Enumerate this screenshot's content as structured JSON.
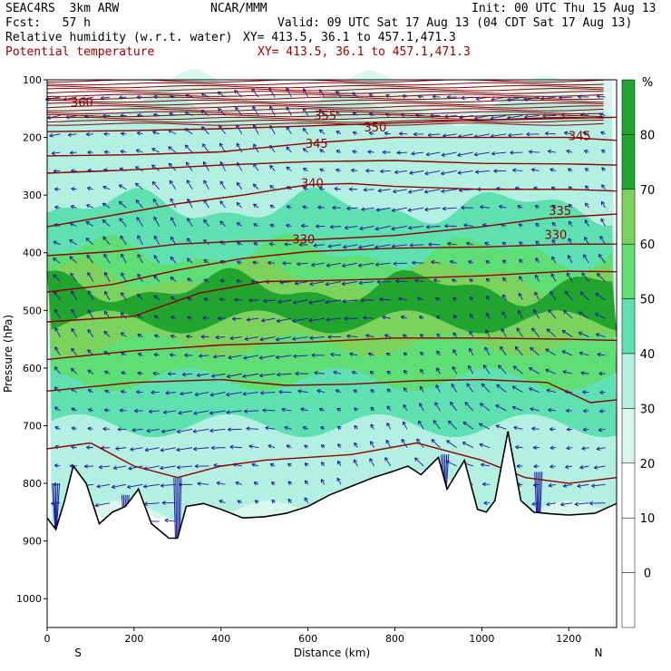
{
  "header": {
    "model_line": "SEAC4RS  3km ARW",
    "center": "NCAR/MMM",
    "init": "Init: 00 UTC Thu 15 Aug 13",
    "fcst": "Fcst:   57 h",
    "valid": "Valid: 09 UTC Sat 17 Aug 13 (04 CDT Sat 17 Aug 13)",
    "field1": "Relative humidity (w.r.t. water)",
    "xy1": "XY= 413.5, 36.1 to 457.1,471.3",
    "field2": "Potential temperature",
    "xy2": "XY= 413.5, 36.1 to 457.1,471.3"
  },
  "colors": {
    "theta_contour": "#8b0000",
    "wind_vector": "#1a1a9c",
    "terrain": "#000000",
    "rh_30": "#d9f7ee",
    "rh_40": "#b4f0e1",
    "rh_50": "#5fe0b1",
    "rh_60": "#5ede74",
    "rh_70": "#7bd35e",
    "rh_80": "#22a52e"
  },
  "chart_data": {
    "type": "heatmap",
    "xlabel": "Distance (km)",
    "ylabel": "Pressure (hPa)",
    "x_range": [
      0,
      1310
    ],
    "y_range": [
      1050,
      100
    ],
    "x_ticks": [
      0,
      200,
      400,
      600,
      800,
      1000,
      1200
    ],
    "y_ticks": [
      100,
      200,
      300,
      400,
      500,
      600,
      700,
      800,
      900,
      1000
    ],
    "x_end_labels": {
      "left": "S",
      "right": "N"
    },
    "colorbar": {
      "unit": "%",
      "ticks": [
        0,
        10,
        20,
        30,
        40,
        50,
        60,
        70,
        80
      ],
      "levels": [
        30,
        40,
        50,
        60,
        70,
        80
      ]
    },
    "theta_contour_labels": [
      {
        "value": "360",
        "x": 80,
        "p": 140
      },
      {
        "value": "355",
        "x": 640,
        "p": 163
      },
      {
        "value": "350",
        "x": 755,
        "p": 183
      },
      {
        "value": "345",
        "x": 620,
        "p": 212
      },
      {
        "value": "345",
        "x": 1225,
        "p": 198
      },
      {
        "value": "340",
        "x": 610,
        "p": 280
      },
      {
        "value": "335",
        "x": 1180,
        "p": 328
      },
      {
        "value": "330",
        "x": 590,
        "p": 378
      },
      {
        "value": "330",
        "x": 1170,
        "p": 370
      }
    ],
    "theta_contours": [
      {
        "points": [
          [
            0,
            190
          ],
          [
            200,
            188
          ],
          [
            400,
            185
          ],
          [
            600,
            180
          ],
          [
            800,
            175
          ],
          [
            1000,
            170
          ],
          [
            1310,
            165
          ]
        ]
      },
      {
        "points": [
          [
            0,
            232
          ],
          [
            200,
            230
          ],
          [
            400,
            225
          ],
          [
            600,
            210
          ],
          [
            800,
            200
          ],
          [
            1000,
            200
          ],
          [
            1200,
            200
          ],
          [
            1310,
            205
          ]
        ]
      },
      {
        "points": [
          [
            0,
            262
          ],
          [
            200,
            256
          ],
          [
            400,
            248
          ],
          [
            600,
            242
          ],
          [
            800,
            240
          ],
          [
            1000,
            245
          ],
          [
            1200,
            246
          ],
          [
            1310,
            248
          ]
        ]
      },
      {
        "points": [
          [
            0,
            355
          ],
          [
            150,
            335
          ],
          [
            300,
            315
          ],
          [
            450,
            300
          ],
          [
            600,
            282
          ],
          [
            700,
            280
          ],
          [
            800,
            285
          ],
          [
            1000,
            290
          ],
          [
            1200,
            290
          ],
          [
            1310,
            293
          ]
        ]
      },
      {
        "points": [
          [
            0,
            405
          ],
          [
            150,
            398
          ],
          [
            300,
            385
          ],
          [
            450,
            380
          ],
          [
            600,
            378
          ],
          [
            800,
            370
          ],
          [
            1000,
            355
          ],
          [
            1150,
            340
          ],
          [
            1310,
            333
          ]
        ]
      },
      {
        "points": [
          [
            0,
            468
          ],
          [
            150,
            455
          ],
          [
            300,
            430
          ],
          [
            450,
            410
          ],
          [
            600,
            398
          ],
          [
            800,
            392
          ],
          [
            1000,
            390
          ],
          [
            1200,
            385
          ],
          [
            1310,
            385
          ]
        ]
      },
      {
        "points": [
          [
            0,
            520
          ],
          [
            200,
            510
          ],
          [
            350,
            470
          ],
          [
            500,
            450
          ],
          [
            650,
            448
          ],
          [
            800,
            445
          ],
          [
            1000,
            440
          ],
          [
            1200,
            432
          ],
          [
            1310,
            433
          ]
        ]
      },
      {
        "points": [
          [
            0,
            585
          ],
          [
            200,
            570
          ],
          [
            400,
            560
          ],
          [
            600,
            555
          ],
          [
            800,
            548
          ],
          [
            1000,
            548
          ],
          [
            1200,
            550
          ],
          [
            1310,
            552
          ]
        ]
      },
      {
        "points": [
          [
            0,
            640
          ],
          [
            200,
            625
          ],
          [
            400,
            620
          ],
          [
            550,
            630
          ],
          [
            700,
            628
          ],
          [
            850,
            622
          ],
          [
            1000,
            620
          ],
          [
            1150,
            625
          ],
          [
            1250,
            660
          ],
          [
            1310,
            655
          ]
        ]
      },
      {
        "points": [
          [
            0,
            740
          ],
          [
            100,
            730
          ],
          [
            200,
            770
          ],
          [
            300,
            790
          ],
          [
            400,
            770
          ],
          [
            500,
            760
          ],
          [
            700,
            750
          ],
          [
            850,
            730
          ],
          [
            1000,
            760
          ],
          [
            1100,
            790
          ],
          [
            1200,
            800
          ],
          [
            1310,
            790
          ]
        ]
      }
    ],
    "terrain_profile": {
      "points": [
        [
          0,
          860
        ],
        [
          20,
          880
        ],
        [
          40,
          830
        ],
        [
          60,
          770
        ],
        [
          90,
          800
        ],
        [
          120,
          870
        ],
        [
          150,
          850
        ],
        [
          180,
          840
        ],
        [
          210,
          810
        ],
        [
          240,
          870
        ],
        [
          280,
          895
        ],
        [
          300,
          895
        ],
        [
          320,
          840
        ],
        [
          360,
          835
        ],
        [
          400,
          845
        ],
        [
          450,
          860
        ],
        [
          500,
          858
        ],
        [
          550,
          852
        ],
        [
          600,
          840
        ],
        [
          650,
          820
        ],
        [
          700,
          805
        ],
        [
          750,
          790
        ],
        [
          800,
          778
        ],
        [
          830,
          770
        ],
        [
          860,
          785
        ],
        [
          900,
          755
        ],
        [
          920,
          810
        ],
        [
          960,
          760
        ],
        [
          990,
          845
        ],
        [
          1010,
          850
        ],
        [
          1030,
          830
        ],
        [
          1060,
          710
        ],
        [
          1090,
          830
        ],
        [
          1120,
          850
        ],
        [
          1160,
          853
        ],
        [
          1200,
          855
        ],
        [
          1260,
          852
        ],
        [
          1310,
          835
        ]
      ]
    },
    "rh_bands": [
      {
        "level": 30,
        "top": 115,
        "bottom": 880
      },
      {
        "level": 40,
        "top": 150,
        "bottom": 850
      },
      {
        "level": 50,
        "top": 320,
        "bottom": 700
      },
      {
        "level": 60,
        "top": 400,
        "bottom": 620
      },
      {
        "level": 70,
        "top": 440,
        "bottom": 560
      },
      {
        "level": 80,
        "top": 460,
        "bottom": 520
      }
    ]
  }
}
